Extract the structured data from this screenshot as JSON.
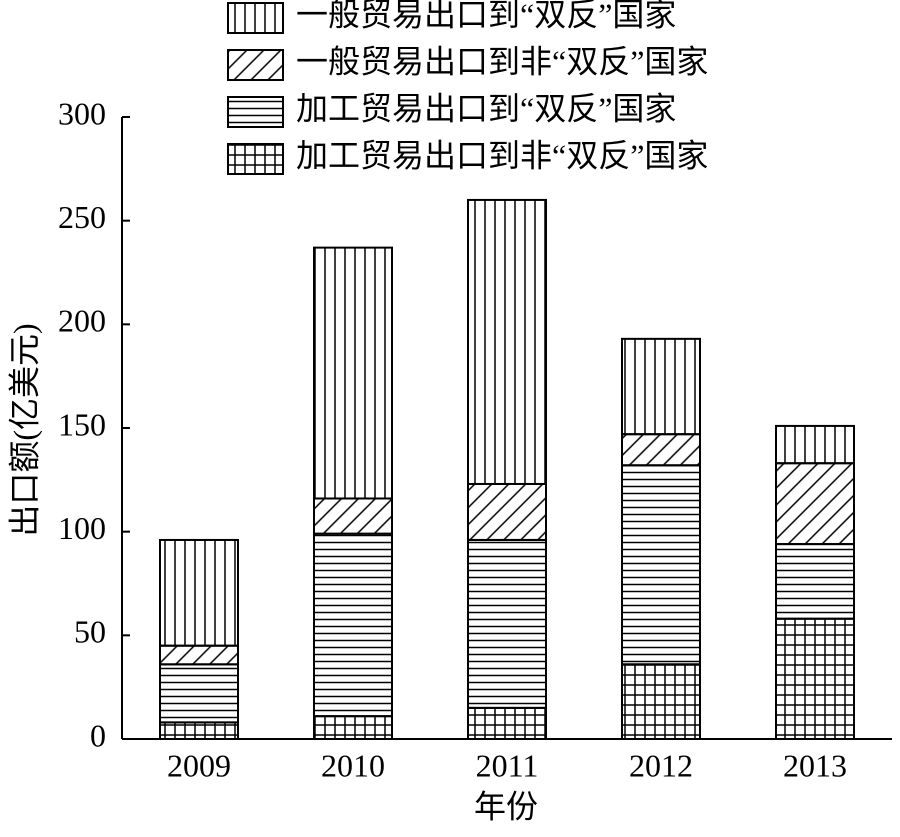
{
  "chart_data": {
    "type": "stacked-bar",
    "y_label": "出口额(亿美元)",
    "x_label": "年份",
    "categories": [
      "2009",
      "2010",
      "2011",
      "2012",
      "2013"
    ],
    "series": [
      {
        "name": "一般贸易出口到“双反”国家",
        "color": "#000000",
        "pattern": "vertical",
        "values": [
          51,
          121,
          137,
          46,
          18
        ]
      },
      {
        "name": "一般贸易出口到非“双反”国家",
        "color": "#000000",
        "pattern": "diagonal",
        "values": [
          9,
          17,
          27,
          15,
          39
        ]
      },
      {
        "name": "加工贸易出口到“双反”国家",
        "color": "#000000",
        "pattern": "horizontal",
        "values": [
          28,
          88,
          81,
          96,
          36
        ]
      },
      {
        "name": "加工贸易出口到非“双反”国家",
        "color": "#000000",
        "pattern": "grid",
        "values": [
          8,
          11,
          15,
          36,
          58
        ]
      }
    ],
    "ylim": [
      0,
      300
    ],
    "yticks": [
      0,
      50,
      100,
      150,
      200,
      250,
      300
    ]
  }
}
